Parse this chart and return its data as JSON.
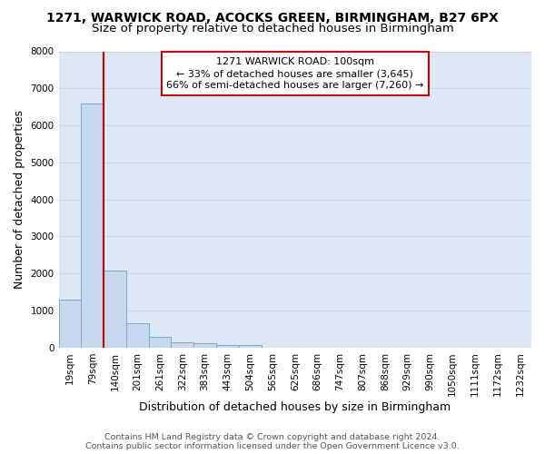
{
  "title_line1": "1271, WARWICK ROAD, ACOCKS GREEN, BIRMINGHAM, B27 6PX",
  "title_line2": "Size of property relative to detached houses in Birmingham",
  "xlabel": "Distribution of detached houses by size in Birmingham",
  "ylabel": "Number of detached properties",
  "footnote1": "Contains HM Land Registry data © Crown copyright and database right 2024.",
  "footnote2": "Contains public sector information licensed under the Open Government Licence v3.0.",
  "bar_labels": [
    "19sqm",
    "79sqm",
    "140sqm",
    "201sqm",
    "261sqm",
    "322sqm",
    "383sqm",
    "443sqm",
    "504sqm",
    "565sqm",
    "625sqm",
    "686sqm",
    "747sqm",
    "807sqm",
    "868sqm",
    "929sqm",
    "990sqm",
    "1050sqm",
    "1111sqm",
    "1172sqm",
    "1232sqm"
  ],
  "bar_values": [
    1300,
    6600,
    2080,
    650,
    300,
    140,
    110,
    70,
    70,
    0,
    0,
    0,
    0,
    0,
    0,
    0,
    0,
    0,
    0,
    0,
    0
  ],
  "bar_color": "#c5d8ee",
  "bar_edge_color": "#7ba7d0",
  "vline_x": 1.5,
  "vline_color": "#cc0000",
  "ylim": [
    0,
    8000
  ],
  "yticks": [
    0,
    1000,
    2000,
    3000,
    4000,
    5000,
    6000,
    7000,
    8000
  ],
  "annotation_line1": "1271 WARWICK ROAD: 100sqm",
  "annotation_line2": "← 33% of detached houses are smaller (3,645)",
  "annotation_line3": "66% of semi-detached houses are larger (7,260) →",
  "annotation_box_facecolor": "#ffffff",
  "annotation_box_edgecolor": "#cc0000",
  "plot_bg_color": "#dce8f5",
  "fig_bg_color": "#ffffff",
  "grid_color": "#c8d8e8",
  "title_fontsize": 10,
  "subtitle_fontsize": 9.5,
  "axis_label_fontsize": 9,
  "tick_fontsize": 7.5,
  "annotation_fontsize": 8,
  "footnote_fontsize": 6.8
}
